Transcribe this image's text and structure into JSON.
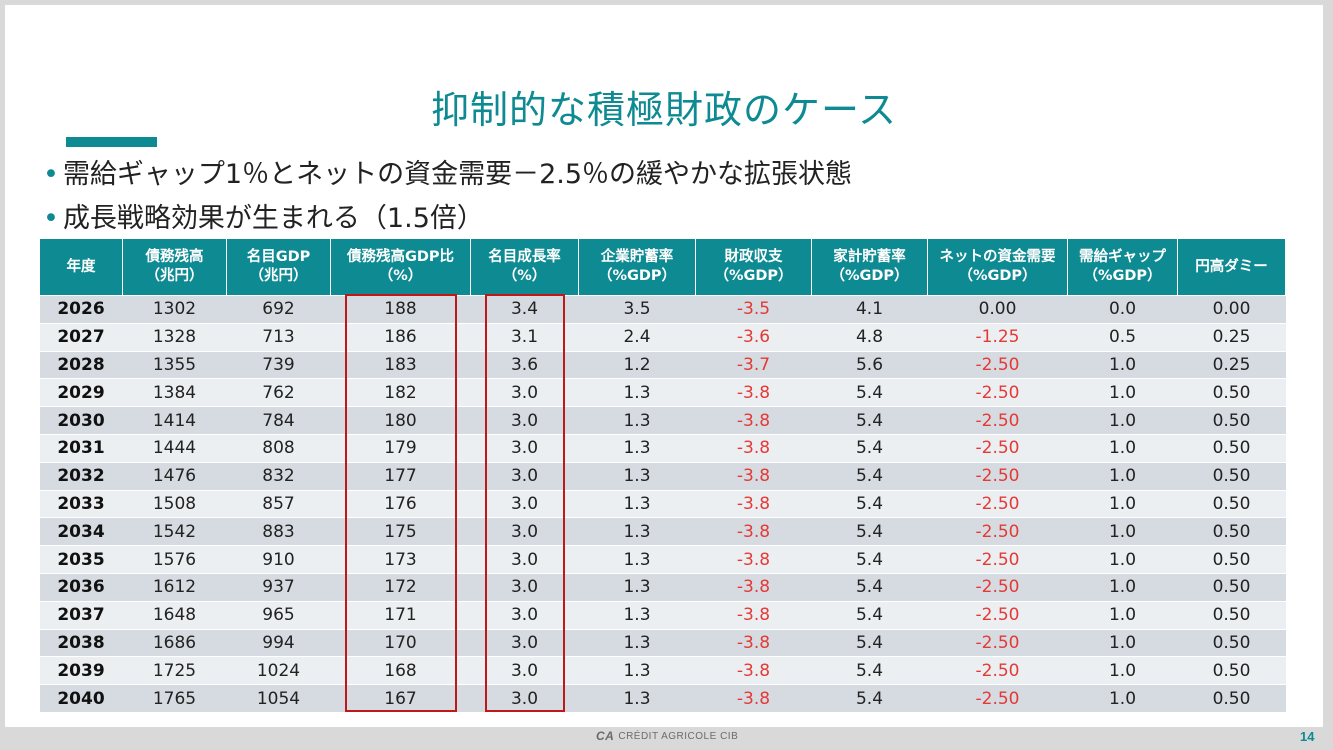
{
  "title": "抑制的な積極財政のケース",
  "bullets": [
    "需給ギャップ1％とネットの資金需要－2.5％の緩やかな拡張状態",
    "成長戦略効果が生まれる（1.5倍）"
  ],
  "bullet_marker": "•",
  "table": {
    "headers": [
      [
        "年度",
        ""
      ],
      [
        "債務残高",
        "（兆円）"
      ],
      [
        "名目GDP",
        "（兆円）"
      ],
      [
        "債務残高GDP比",
        "（%）"
      ],
      [
        "名目成長率",
        "（%）"
      ],
      [
        "企業貯蓄率",
        "（%GDP）"
      ],
      [
        "財政収支",
        "（%GDP）"
      ],
      [
        "家計貯蓄率",
        "（%GDP）"
      ],
      [
        "ネットの資金需要",
        "（%GDP）"
      ],
      [
        "需給ギャップ",
        "（%GDP）"
      ],
      [
        "円高ダミー",
        ""
      ]
    ],
    "rows": [
      [
        "2026",
        "1302",
        "692",
        "188",
        "3.4",
        "3.5",
        "-3.5",
        "4.1",
        "0.00",
        "0.0",
        "0.00"
      ],
      [
        "2027",
        "1328",
        "713",
        "186",
        "3.1",
        "2.4",
        "-3.6",
        "4.8",
        "-1.25",
        "0.5",
        "0.25"
      ],
      [
        "2028",
        "1355",
        "739",
        "183",
        "3.6",
        "1.2",
        "-3.7",
        "5.6",
        "-2.50",
        "1.0",
        "0.25"
      ],
      [
        "2029",
        "1384",
        "762",
        "182",
        "3.0",
        "1.3",
        "-3.8",
        "5.4",
        "-2.50",
        "1.0",
        "0.50"
      ],
      [
        "2030",
        "1414",
        "784",
        "180",
        "3.0",
        "1.3",
        "-3.8",
        "5.4",
        "-2.50",
        "1.0",
        "0.50"
      ],
      [
        "2031",
        "1444",
        "808",
        "179",
        "3.0",
        "1.3",
        "-3.8",
        "5.4",
        "-2.50",
        "1.0",
        "0.50"
      ],
      [
        "2032",
        "1476",
        "832",
        "177",
        "3.0",
        "1.3",
        "-3.8",
        "5.4",
        "-2.50",
        "1.0",
        "0.50"
      ],
      [
        "2033",
        "1508",
        "857",
        "176",
        "3.0",
        "1.3",
        "-3.8",
        "5.4",
        "-2.50",
        "1.0",
        "0.50"
      ],
      [
        "2034",
        "1542",
        "883",
        "175",
        "3.0",
        "1.3",
        "-3.8",
        "5.4",
        "-2.50",
        "1.0",
        "0.50"
      ],
      [
        "2035",
        "1576",
        "910",
        "173",
        "3.0",
        "1.3",
        "-3.8",
        "5.4",
        "-2.50",
        "1.0",
        "0.50"
      ],
      [
        "2036",
        "1612",
        "937",
        "172",
        "3.0",
        "1.3",
        "-3.8",
        "5.4",
        "-2.50",
        "1.0",
        "0.50"
      ],
      [
        "2037",
        "1648",
        "965",
        "171",
        "3.0",
        "1.3",
        "-3.8",
        "5.4",
        "-2.50",
        "1.0",
        "0.50"
      ],
      [
        "2038",
        "1686",
        "994",
        "170",
        "3.0",
        "1.3",
        "-3.8",
        "5.4",
        "-2.50",
        "1.0",
        "0.50"
      ],
      [
        "2039",
        "1725",
        "1024",
        "168",
        "3.0",
        "1.3",
        "-3.8",
        "5.4",
        "-2.50",
        "1.0",
        "0.50"
      ],
      [
        "2040",
        "1765",
        "1054",
        "167",
        "3.0",
        "1.3",
        "-3.8",
        "5.4",
        "-2.50",
        "1.0",
        "0.50"
      ]
    ],
    "highlighted_columns": [
      "債務残高GDP比",
      "名目成長率"
    ]
  },
  "colors": {
    "accent": "#0e8a92",
    "negative": "#e53935",
    "highlight_box": "#c01818"
  },
  "footer": {
    "logo_mark": "CA",
    "logo_text": "CRÉDIT AGRICOLE CIB",
    "page_number": "14"
  }
}
